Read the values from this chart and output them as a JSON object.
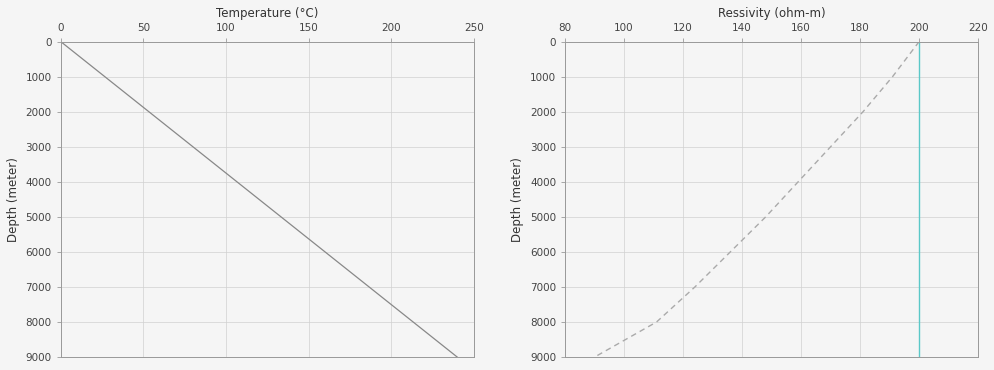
{
  "temp_depth": [
    0,
    9000
  ],
  "temp_values": [
    0,
    240
  ],
  "res_depth": [
    0,
    1000,
    2000,
    3000,
    4000,
    5000,
    6000,
    7000,
    8000,
    9000
  ],
  "res_values": [
    200,
    191,
    181,
    170,
    159,
    148,
    136,
    124,
    111,
    90
  ],
  "vline_x": 200,
  "temp_xlabel": "Temperature (°C)",
  "res_xlabel": "Ressivity (ohm-m)",
  "ylabel": "Depth (meter)",
  "temp_xlim": [
    0,
    250
  ],
  "temp_xticks": [
    0,
    50,
    100,
    150,
    200,
    250
  ],
  "res_xlim": [
    80,
    220
  ],
  "res_xticks": [
    80,
    100,
    120,
    140,
    160,
    180,
    200,
    220
  ],
  "ylim": [
    0,
    9000
  ],
  "yticks": [
    0,
    1000,
    2000,
    3000,
    4000,
    5000,
    6000,
    7000,
    8000,
    9000
  ],
  "temp_line_color": "#888888",
  "res_line_color": "#aaaaaa",
  "vline_color": "#5bc8c8",
  "grid_color": "#d0d0d0",
  "bg_color": "#f5f5f5",
  "tick_label_color": "#444444",
  "title_color": "#333333",
  "spine_color": "#999999"
}
